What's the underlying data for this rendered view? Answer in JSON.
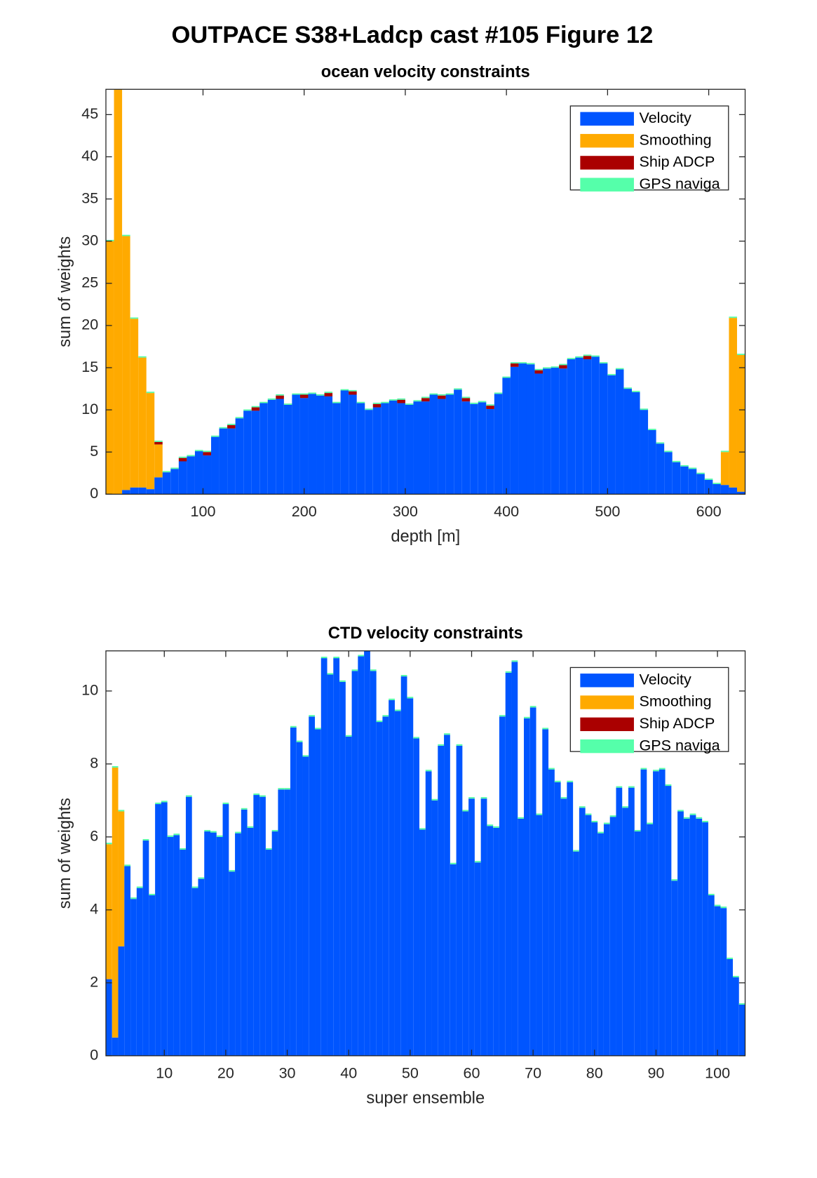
{
  "title": "OUTPACE S38+Ladcp cast #105  Figure 12",
  "chart_data": [
    {
      "type": "bar",
      "stacked": true,
      "title": "ocean velocity constraints",
      "xlabel": "depth [m]",
      "ylabel": "sum of weights",
      "xlim": [
        4,
        636
      ],
      "ylim": [
        0,
        48
      ],
      "xticks": [
        100,
        200,
        300,
        400,
        500,
        600
      ],
      "yticks": [
        0,
        5,
        10,
        15,
        20,
        25,
        30,
        35,
        40,
        45
      ],
      "legend": "upper right",
      "x": [
        8,
        16,
        24,
        32,
        40,
        48,
        56,
        64,
        72,
        80,
        88,
        96,
        104,
        112,
        120,
        128,
        136,
        144,
        152,
        160,
        168,
        176,
        184,
        192,
        200,
        208,
        216,
        224,
        232,
        240,
        248,
        256,
        264,
        272,
        280,
        288,
        296,
        304,
        312,
        320,
        328,
        336,
        344,
        352,
        360,
        368,
        376,
        384,
        392,
        400,
        408,
        416,
        424,
        432,
        440,
        448,
        456,
        464,
        472,
        480,
        488,
        496,
        504,
        512,
        520,
        528,
        536,
        544,
        552,
        560,
        568,
        576,
        584,
        592,
        600,
        608,
        616,
        624,
        632
      ],
      "series": [
        {
          "name": "Velocity",
          "color": "#0055ff",
          "values": [
            0,
            0,
            0.5,
            0.8,
            0.8,
            0.6,
            2.0,
            2.6,
            3.0,
            3.9,
            4.5,
            5.1,
            4.6,
            6.8,
            7.8,
            7.8,
            9.0,
            9.9,
            9.9,
            10.8,
            11.2,
            11.3,
            10.6,
            11.8,
            11.4,
            11.9,
            11.7,
            11.6,
            10.8,
            12.3,
            11.8,
            10.8,
            10.0,
            10.3,
            10.8,
            11.1,
            10.8,
            10.6,
            11.0,
            11.0,
            11.8,
            11.3,
            11.8,
            12.4,
            11.0,
            10.7,
            10.9,
            10.1,
            11.9,
            13.8,
            15.1,
            15.5,
            15.4,
            14.3,
            14.9,
            15.0,
            14.9,
            16.0,
            16.2,
            16.0,
            16.3,
            15.5,
            14.1,
            14.8,
            12.5,
            12.1,
            10.0,
            7.6,
            6.0,
            5.0,
            3.8,
            3.3,
            3.0,
            2.4,
            1.7,
            1.2,
            1.1,
            0.8,
            0.3
          ]
        },
        {
          "name": "Smoothing",
          "color": "#ffaa00",
          "values": [
            30,
            48,
            30.1,
            20,
            15.4,
            11.4,
            3.9,
            0,
            0,
            0,
            0,
            0,
            0,
            0,
            0,
            0,
            0,
            0,
            0,
            0,
            0,
            0,
            0,
            0,
            0,
            0,
            0,
            0,
            0,
            0,
            0,
            0,
            0,
            0,
            0,
            0,
            0,
            0,
            0,
            0,
            0,
            0,
            0,
            0,
            0,
            0,
            0,
            0,
            0,
            0,
            0,
            0,
            0,
            0,
            0,
            0,
            0,
            0,
            0,
            0,
            0,
            0,
            0,
            0,
            0,
            0,
            0,
            0,
            0,
            0,
            0,
            0,
            0,
            0,
            0,
            0,
            3.9,
            20.1,
            16.2
          ]
        },
        {
          "name": "Ship ADCP",
          "color": "#aa0000",
          "values": [
            0,
            0,
            0,
            0,
            0,
            0,
            0.3,
            0,
            0,
            0.4,
            0,
            0,
            0.4,
            0,
            0,
            0.4,
            0,
            0,
            0.4,
            0,
            0,
            0.4,
            0,
            0,
            0.4,
            0,
            0,
            0.4,
            0,
            0,
            0.4,
            0,
            0,
            0.4,
            0,
            0,
            0.4,
            0,
            0,
            0.4,
            0,
            0.4,
            0,
            0,
            0.4,
            0,
            0,
            0.4,
            0,
            0,
            0.4,
            0,
            0,
            0.4,
            0,
            0,
            0.4,
            0,
            0,
            0.4,
            0,
            0,
            0,
            0,
            0,
            0,
            0,
            0,
            0,
            0,
            0,
            0,
            0,
            0,
            0,
            0,
            0,
            0,
            0
          ]
        },
        {
          "name": "GPS naviga",
          "color": "#55ffaa",
          "values": [
            0.15,
            0.15,
            0.15,
            0.15,
            0.15,
            0.15,
            0.15,
            0.15,
            0.15,
            0.15,
            0.15,
            0.15,
            0.15,
            0.15,
            0.15,
            0.15,
            0.15,
            0.15,
            0.15,
            0.15,
            0.15,
            0.15,
            0.15,
            0.15,
            0.15,
            0.15,
            0.15,
            0.15,
            0.15,
            0.15,
            0.15,
            0.15,
            0.15,
            0.15,
            0.15,
            0.15,
            0.15,
            0.15,
            0.15,
            0.15,
            0.15,
            0.15,
            0.15,
            0.15,
            0.15,
            0.15,
            0.15,
            0.15,
            0.15,
            0.15,
            0.15,
            0.15,
            0.15,
            0.15,
            0.15,
            0.15,
            0.15,
            0.15,
            0.15,
            0.15,
            0.15,
            0.15,
            0.15,
            0.15,
            0.15,
            0.15,
            0.15,
            0.15,
            0.15,
            0.15,
            0.15,
            0.15,
            0.15,
            0.15,
            0.15,
            0.15,
            0.15,
            0.15,
            0.15
          ]
        }
      ]
    },
    {
      "type": "bar",
      "stacked": true,
      "title": "CTD velocity constraints",
      "xlabel": "super ensemble",
      "ylabel": "sum of weights",
      "xlim": [
        0.5,
        104.5
      ],
      "ylim": [
        0,
        11.1
      ],
      "xticks": [
        10,
        20,
        30,
        40,
        50,
        60,
        70,
        80,
        90,
        100
      ],
      "yticks": [
        0,
        2,
        4,
        6,
        8,
        10
      ],
      "legend": "upper right",
      "x": [
        1,
        2,
        3,
        4,
        5,
        6,
        7,
        8,
        9,
        10,
        11,
        12,
        13,
        14,
        15,
        16,
        17,
        18,
        19,
        20,
        21,
        22,
        23,
        24,
        25,
        26,
        27,
        28,
        29,
        30,
        31,
        32,
        33,
        34,
        35,
        36,
        37,
        38,
        39,
        40,
        41,
        42,
        43,
        44,
        45,
        46,
        47,
        48,
        49,
        50,
        51,
        52,
        53,
        54,
        55,
        56,
        57,
        58,
        59,
        60,
        61,
        62,
        63,
        64,
        65,
        66,
        67,
        68,
        69,
        70,
        71,
        72,
        73,
        74,
        75,
        76,
        77,
        78,
        79,
        80,
        81,
        82,
        83,
        84,
        85,
        86,
        87,
        88,
        89,
        90,
        91,
        92,
        93,
        94,
        95,
        96,
        97,
        98,
        99,
        100,
        101,
        102,
        103,
        104
      ],
      "series": [
        {
          "name": "Velocity",
          "color": "#0055ff",
          "values": [
            2.1,
            0.5,
            3.0,
            5.2,
            4.3,
            4.6,
            5.9,
            4.4,
            6.9,
            6.95,
            6.0,
            6.05,
            5.65,
            7.1,
            4.6,
            4.85,
            6.15,
            6.12,
            6.0,
            6.9,
            5.05,
            6.1,
            6.75,
            6.25,
            7.15,
            7.1,
            5.65,
            6.15,
            7.3,
            7.3,
            9.0,
            8.6,
            8.2,
            9.3,
            8.95,
            10.9,
            10.45,
            10.9,
            10.25,
            8.75,
            10.55,
            10.95,
            11.1,
            10.55,
            9.15,
            9.3,
            9.75,
            9.45,
            10.4,
            9.8,
            8.7,
            6.2,
            7.8,
            7.0,
            8.5,
            8.8,
            5.25,
            8.5,
            6.7,
            7.05,
            5.3,
            7.05,
            6.3,
            6.25,
            9.3,
            10.5,
            10.8,
            6.5,
            9.25,
            9.55,
            6.6,
            8.95,
            7.85,
            7.5,
            7.05,
            7.5,
            5.6,
            6.8,
            6.6,
            6.4,
            6.1,
            6.35,
            6.55,
            7.35,
            6.8,
            7.35,
            6.15,
            7.85,
            6.35,
            7.8,
            7.85,
            7.4,
            4.8,
            6.7,
            6.5,
            6.6,
            6.5,
            6.4,
            4.4,
            4.1,
            4.05,
            2.65,
            2.15,
            1.4
          ]
        },
        {
          "name": "Smoothing",
          "color": "#ffaa00",
          "values": [
            3.7,
            7.4,
            3.7,
            0,
            0,
            0,
            0,
            0,
            0,
            0,
            0,
            0,
            0,
            0,
            0,
            0,
            0,
            0,
            0,
            0,
            0,
            0,
            0,
            0,
            0,
            0,
            0,
            0,
            0,
            0,
            0,
            0,
            0,
            0,
            0,
            0,
            0,
            0,
            0,
            0,
            0,
            0,
            0,
            0,
            0,
            0,
            0,
            0,
            0,
            0,
            0,
            0,
            0,
            0,
            0,
            0,
            0,
            0,
            0,
            0,
            0,
            0,
            0,
            0,
            0,
            0,
            0,
            0,
            0,
            0,
            0,
            0,
            0,
            0,
            0,
            0,
            0,
            0,
            0,
            0,
            0,
            0,
            0,
            0,
            0,
            0,
            0,
            0,
            0,
            0,
            0,
            0,
            0,
            0,
            0,
            0,
            0,
            0,
            0,
            0,
            0,
            0,
            0,
            0
          ]
        },
        {
          "name": "Ship ADCP",
          "color": "#aa0000",
          "values": [
            0,
            0,
            0,
            0,
            0,
            0,
            0,
            0,
            0,
            0,
            0,
            0,
            0,
            0,
            0,
            0,
            0,
            0,
            0,
            0,
            0,
            0,
            0,
            0,
            0,
            0,
            0,
            0,
            0,
            0,
            0,
            0,
            0,
            0,
            0,
            0,
            0,
            0,
            0,
            0,
            0,
            0,
            0,
            0,
            0,
            0,
            0,
            0,
            0,
            0,
            0,
            0,
            0,
            0,
            0,
            0,
            0,
            0,
            0,
            0,
            0,
            0,
            0,
            0,
            0,
            0,
            0,
            0,
            0,
            0,
            0,
            0,
            0,
            0,
            0,
            0,
            0,
            0,
            0,
            0,
            0,
            0,
            0,
            0,
            0,
            0,
            0,
            0,
            0,
            0,
            0,
            0,
            0,
            0,
            0,
            0,
            0,
            0,
            0,
            0,
            0,
            0,
            0,
            0
          ]
        },
        {
          "name": "GPS naviga",
          "color": "#55ffaa",
          "values": [
            0.04,
            0.04,
            0.04,
            0.04,
            0.04,
            0.04,
            0.04,
            0.04,
            0.04,
            0.04,
            0.04,
            0.04,
            0.04,
            0.04,
            0.04,
            0.04,
            0.04,
            0.04,
            0.04,
            0.04,
            0.04,
            0.04,
            0.04,
            0.04,
            0.04,
            0.04,
            0.04,
            0.04,
            0.04,
            0.04,
            0.04,
            0.04,
            0.04,
            0.04,
            0.04,
            0.04,
            0.04,
            0.04,
            0.04,
            0.04,
            0.04,
            0.04,
            0.04,
            0.04,
            0.04,
            0.04,
            0.04,
            0.04,
            0.04,
            0.04,
            0.04,
            0.04,
            0.04,
            0.04,
            0.04,
            0.04,
            0.04,
            0.04,
            0.04,
            0.04,
            0.04,
            0.04,
            0.04,
            0.04,
            0.04,
            0.04,
            0.04,
            0.04,
            0.04,
            0.04,
            0.04,
            0.04,
            0.04,
            0.04,
            0.04,
            0.04,
            0.04,
            0.04,
            0.04,
            0.04,
            0.04,
            0.04,
            0.04,
            0.04,
            0.04,
            0.04,
            0.04,
            0.04,
            0.04,
            0.04,
            0.04,
            0.04,
            0.04,
            0.04,
            0.04,
            0.04,
            0.04,
            0.04,
            0.04,
            0.04,
            0.04,
            0.04,
            0.04,
            0.04
          ]
        }
      ]
    }
  ]
}
